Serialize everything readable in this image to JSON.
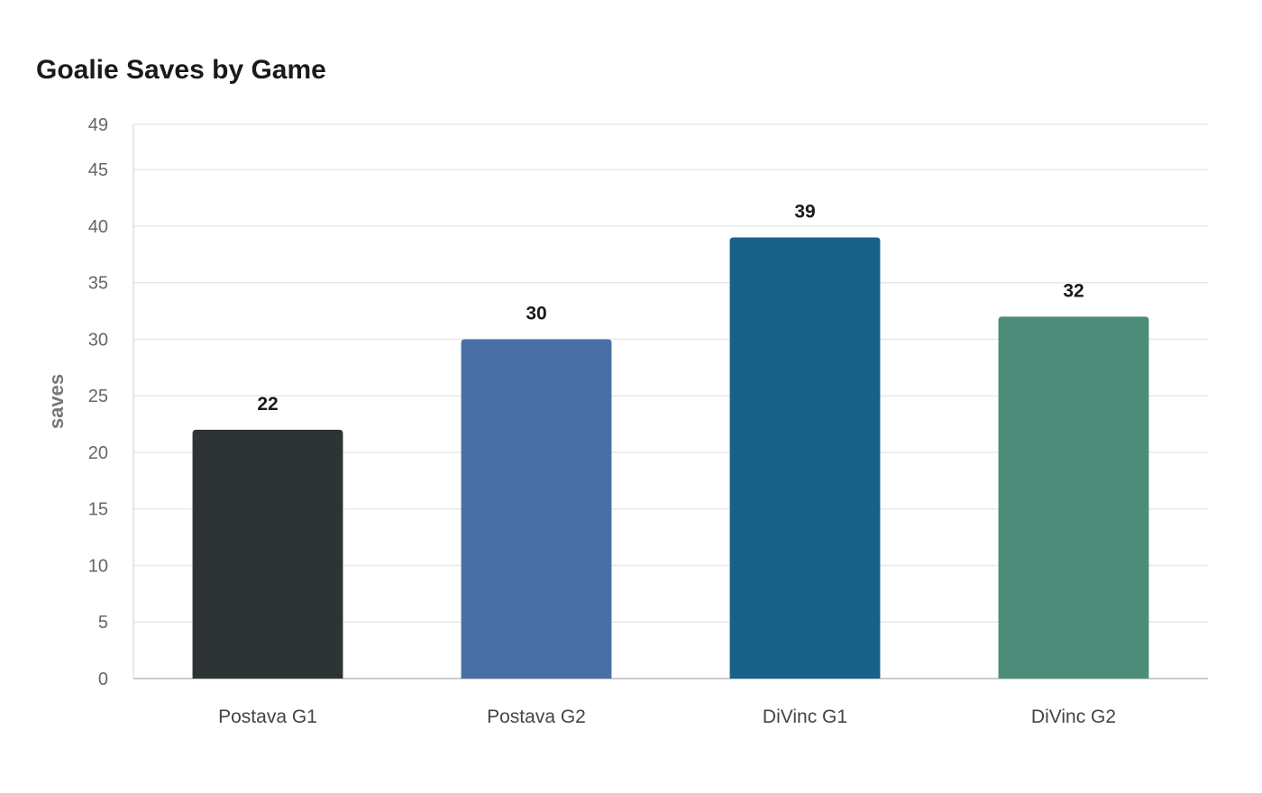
{
  "chart_data": {
    "type": "bar",
    "title": "Goalie Saves by Game",
    "xlabel": "",
    "ylabel": "saves",
    "categories": [
      "Postava G1",
      "Postava G2",
      "DiVinc G1",
      "DiVinc G2"
    ],
    "values": [
      22,
      30,
      39,
      32
    ],
    "colors": [
      "#2e3436",
      "#4a6fa5",
      "#18628a",
      "#4e8c7a"
    ],
    "ylim": [
      0,
      49
    ],
    "yticks": [
      0,
      5,
      10,
      15,
      20,
      25,
      30,
      35,
      40,
      45,
      49
    ],
    "grid": true,
    "data_labels": true
  }
}
